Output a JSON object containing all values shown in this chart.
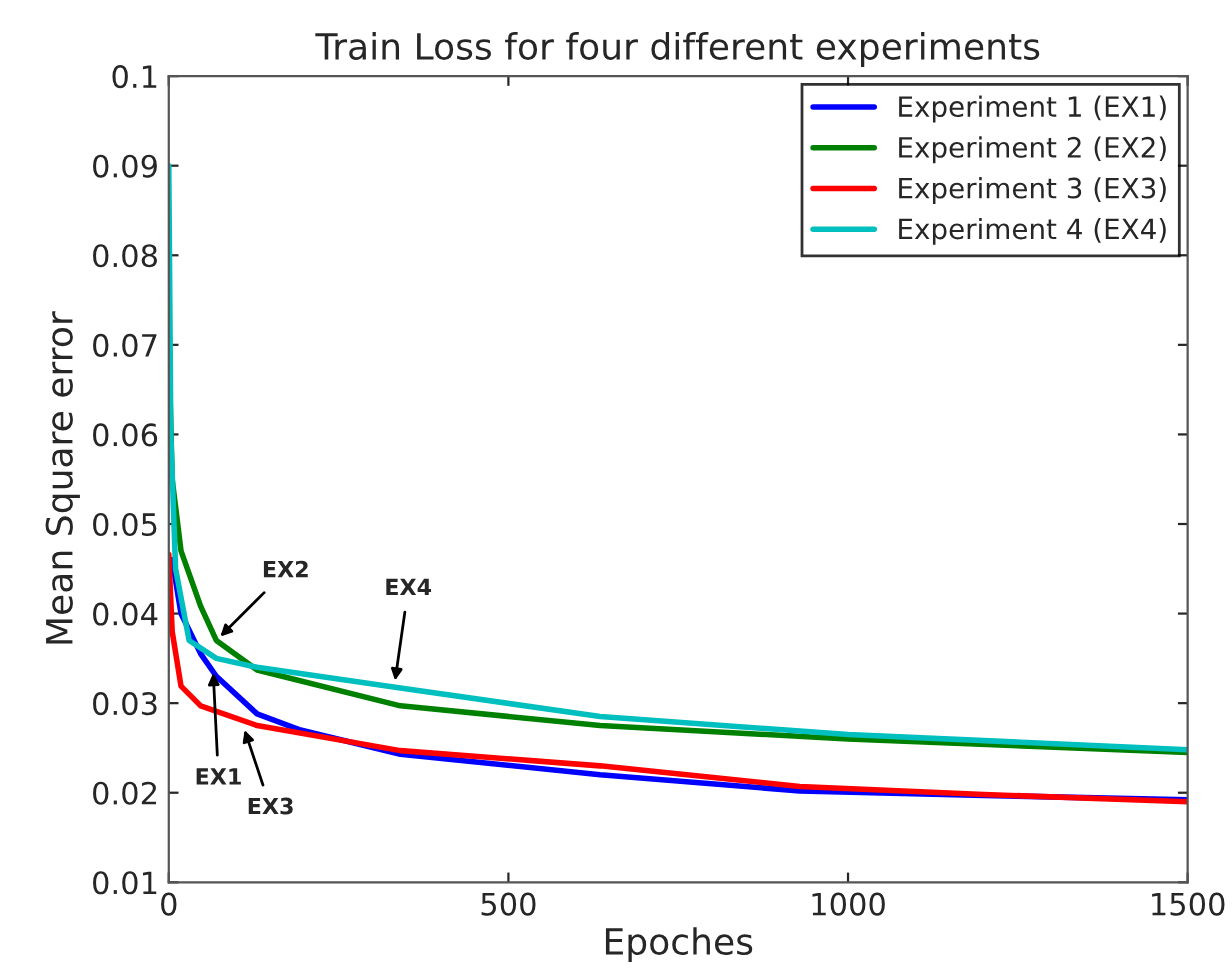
{
  "chart_data": {
    "type": "line",
    "title": "Train Loss for four different experiments",
    "xlabel": "Epoches",
    "ylabel": "Mean Square error",
    "xlim": [
      0,
      1500
    ],
    "ylim": [
      0.01,
      0.1
    ],
    "xticks": [
      0,
      500,
      1000,
      1500
    ],
    "yticks": [
      0.01,
      0.02,
      0.03,
      0.04,
      0.05,
      0.06,
      0.07,
      0.08,
      0.09,
      0.1
    ],
    "grid": false,
    "legend": "top right",
    "line_style": "solid",
    "marker": "none",
    "series": [
      {
        "name": "Experiment 1 (EX1)",
        "color": "#0000ff",
        "x": [
          5,
          18,
          47,
          70,
          130,
          194,
          341,
          635,
          929,
          1200,
          1500
        ],
        "values": [
          0.046,
          0.04,
          0.0355,
          0.033,
          0.0288,
          0.027,
          0.0243,
          0.022,
          0.0202,
          0.0197,
          0.0192
        ]
      },
      {
        "name": "Experiment 2 (EX2)",
        "color": "#008000",
        "x": [
          0,
          5,
          18,
          47,
          70,
          130,
          341,
          635,
          1000,
          1500
        ],
        "values": [
          0.07,
          0.055,
          0.047,
          0.0408,
          0.037,
          0.0337,
          0.0297,
          0.0275,
          0.026,
          0.0245
        ]
      },
      {
        "name": "Experiment 3 (EX3)",
        "color": "#ff0000",
        "x": [
          0,
          5,
          18,
          47,
          130,
          341,
          635,
          929,
          1200,
          1500
        ],
        "values": [
          0.0466,
          0.038,
          0.0319,
          0.0297,
          0.0275,
          0.0247,
          0.023,
          0.0207,
          0.0198,
          0.019
        ]
      },
      {
        "name": "Experiment 4 (EX4)",
        "color": "#00bfbf",
        "x": [
          0,
          3,
          10,
          30,
          70,
          130,
          341,
          635,
          1000,
          1500
        ],
        "values": [
          0.09,
          0.06,
          0.045,
          0.037,
          0.035,
          0.034,
          0.0317,
          0.0285,
          0.0265,
          0.0248
        ]
      }
    ],
    "annotations": [
      {
        "text": "EX2",
        "x": 70,
        "y": 0.037
      },
      {
        "text": "EX4",
        "x": 332,
        "y": 0.0319
      },
      {
        "text": "EX1",
        "x": 65,
        "y": 0.034
      },
      {
        "text": "EX3",
        "x": 109,
        "y": 0.0276
      }
    ]
  }
}
